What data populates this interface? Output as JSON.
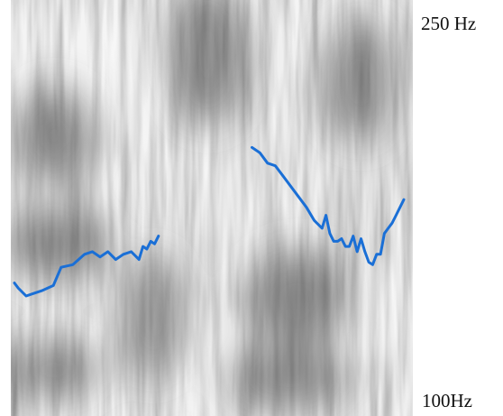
{
  "chart_data": {
    "type": "line",
    "title": "",
    "xlabel": "",
    "ylabel": "",
    "ylim": [
      100,
      250
    ],
    "y_tick_labels": {
      "top": "250 Hz",
      "bottom": "100Hz"
    },
    "background": "spectrogram",
    "grid": false,
    "legend": "none",
    "line_color": "#1a6fd6",
    "series": [
      {
        "values": [
          [
            0.0,
            149
          ],
          [
            0.01,
            147
          ],
          [
            0.03,
            144
          ],
          [
            0.05,
            145
          ],
          [
            0.07,
            146
          ],
          [
            0.1,
            148
          ],
          [
            0.12,
            155
          ],
          [
            0.15,
            156
          ],
          [
            0.18,
            160
          ],
          [
            0.2,
            161
          ],
          [
            0.22,
            159
          ],
          [
            0.24,
            161
          ],
          [
            0.26,
            158
          ],
          [
            0.28,
            160
          ],
          [
            0.3,
            161
          ],
          [
            0.32,
            158
          ],
          [
            0.33,
            163
          ],
          [
            0.34,
            162
          ],
          [
            0.35,
            165
          ],
          [
            0.36,
            164
          ],
          [
            0.37,
            167
          ]
        ]
      },
      {
        "values": [
          [
            0.61,
            201
          ],
          [
            0.63,
            199
          ],
          [
            0.65,
            195
          ],
          [
            0.67,
            194
          ],
          [
            0.69,
            190
          ],
          [
            0.71,
            186
          ],
          [
            0.73,
            182
          ],
          [
            0.75,
            178
          ],
          [
            0.77,
            173
          ],
          [
            0.79,
            170
          ],
          [
            0.8,
            175
          ],
          [
            0.81,
            168
          ],
          [
            0.82,
            165
          ],
          [
            0.83,
            165
          ],
          [
            0.84,
            166
          ],
          [
            0.85,
            163
          ],
          [
            0.86,
            163
          ],
          [
            0.87,
            167
          ],
          [
            0.88,
            161
          ],
          [
            0.89,
            166
          ],
          [
            0.9,
            161
          ],
          [
            0.91,
            157
          ],
          [
            0.92,
            156
          ],
          [
            0.93,
            160
          ],
          [
            0.94,
            160
          ],
          [
            0.95,
            168
          ],
          [
            0.96,
            170
          ],
          [
            0.97,
            172
          ],
          [
            0.98,
            175
          ],
          [
            0.99,
            178
          ],
          [
            1.0,
            181
          ]
        ]
      }
    ]
  }
}
